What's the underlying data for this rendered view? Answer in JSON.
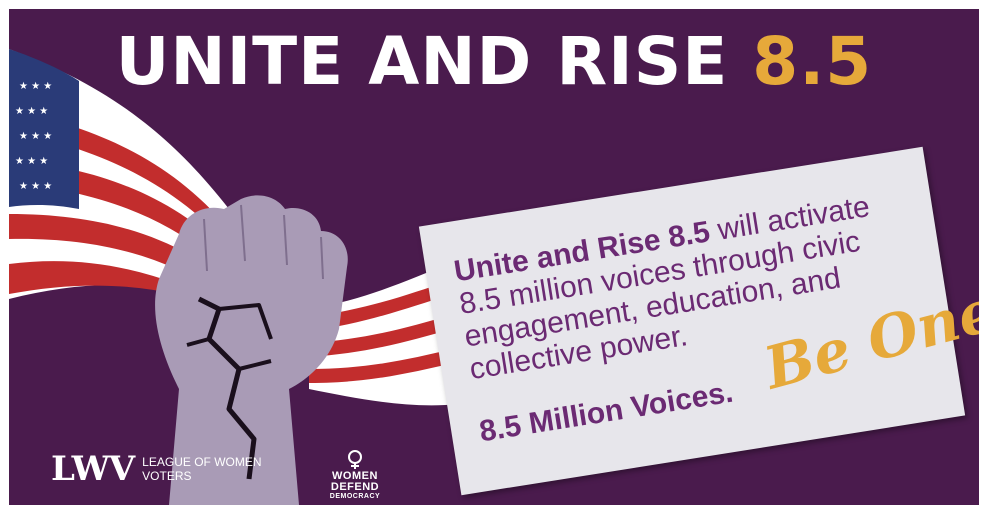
{
  "title": {
    "main": "UNITE AND RISE",
    "number": "8.5"
  },
  "card": {
    "lead_bold": "Unite and Rise 8.5",
    "body": " will activate 8.5 million voices through civic engagement, education, and collective power.",
    "tagline": "8.5 Million Voices.",
    "signature": "Be One!"
  },
  "logos": {
    "lwv_mark": "LWV",
    "lwv_name": "LEAGUE OF WOMEN VOTERS",
    "wdd_name": "WOMEN DEFEND",
    "wdd_sub": "DEMOCRACY"
  },
  "colors": {
    "background": "#4a1b4d",
    "accent_gold": "#e6a93a",
    "card_text_purple": "#6b2a73",
    "card": "#e7e6eb",
    "fist": "#a99bb6",
    "flag_red": "#c22d2d",
    "flag_blue": "#2a3b78"
  },
  "icons": [
    "american-flag-illustration",
    "raised-fist-illustration",
    "lwv-logo",
    "women-defend-democracy-logo"
  ]
}
